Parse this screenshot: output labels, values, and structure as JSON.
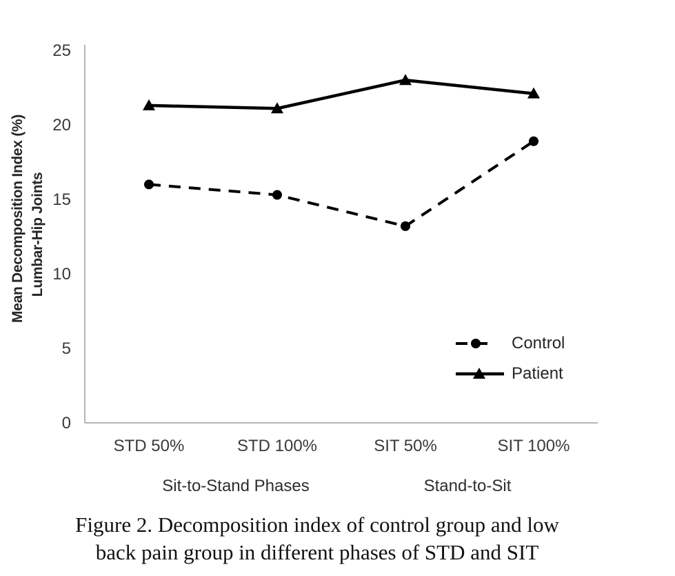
{
  "figure": {
    "background": "#ffffff",
    "caption_line1": "Figure 2. Decomposition index of control group and low",
    "caption_line2": "back pain group in different phases of STD and SIT"
  },
  "chart_data": {
    "type": "line",
    "title": "",
    "ylabel_line1": "Mean Decomposition Index (%)",
    "ylabel_line2": "Lumbar-Hip Joints",
    "categories": [
      "STD 50%",
      "STD 100%",
      "SIT 50%",
      "SIT 100%"
    ],
    "group_labels": [
      {
        "label": "Sit-to-Stand Phases",
        "spans_categories": [
          "STD 50%",
          "STD 100%"
        ]
      },
      {
        "label": "Stand-to-Sit",
        "spans_categories": [
          "SIT 50%",
          "SIT 100%"
        ]
      }
    ],
    "series": [
      {
        "name": "Control",
        "values": [
          16.0,
          15.3,
          13.2,
          18.9
        ],
        "line_style": "dashed",
        "marker": "circle",
        "color": "#000000"
      },
      {
        "name": "Patient",
        "values": [
          21.3,
          21.1,
          23.0,
          22.1
        ],
        "line_style": "solid",
        "marker": "triangle",
        "color": "#000000"
      }
    ],
    "ylim": [
      0,
      25
    ],
    "yticks": [
      0,
      5,
      10,
      15,
      20,
      25
    ],
    "grid": false,
    "legend_position": "inside-right",
    "axis_color": "#9c9c9c",
    "text_color": "#3a3a3a"
  }
}
